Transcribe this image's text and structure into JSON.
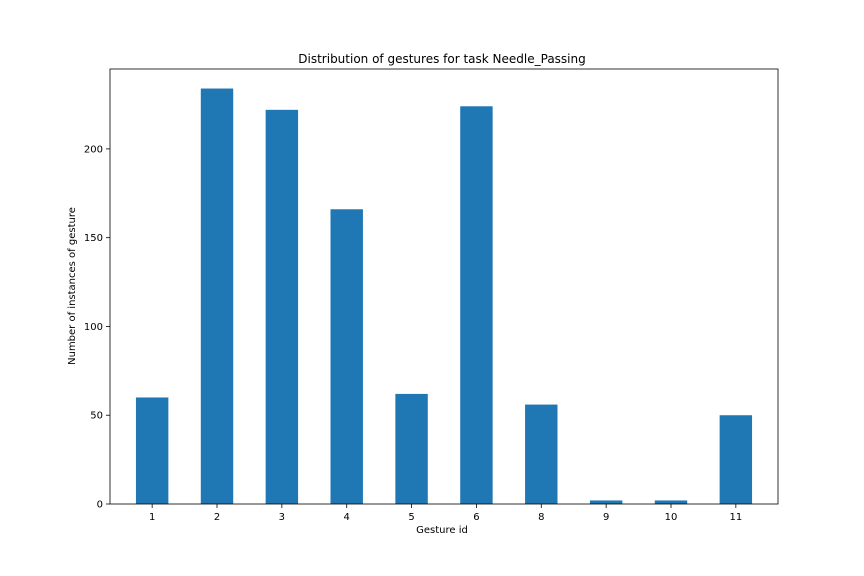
{
  "chart_data": {
    "type": "bar",
    "title": "Distribution of gestures for task Needle_Passing",
    "xlabel": "Gesture id",
    "ylabel": "Number of instances of gesture",
    "categories": [
      "1",
      "2",
      "3",
      "4",
      "5",
      "6",
      "8",
      "9",
      "10",
      "11"
    ],
    "values": [
      60,
      234,
      222,
      166,
      62,
      224,
      56,
      2,
      2,
      50
    ],
    "ylim": [
      0,
      245
    ],
    "yticks": [
      0,
      50,
      100,
      150,
      200
    ],
    "grid": false,
    "legend": "none",
    "bar_color": "#1f77b4"
  }
}
